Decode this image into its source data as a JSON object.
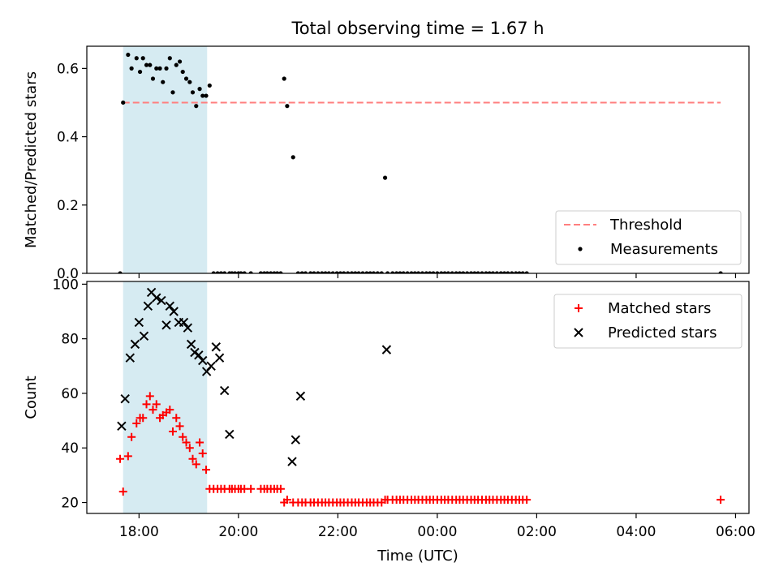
{
  "figure": {
    "title": "Total observing time = 1.67 h",
    "xlabel": "Time (UTC)",
    "xticks": [
      {
        "v": 18,
        "label": "18:00"
      },
      {
        "v": 20,
        "label": "20:00"
      },
      {
        "v": 22,
        "label": "22:00"
      },
      {
        "v": 24,
        "label": "00:00"
      },
      {
        "v": 26,
        "label": "02:00"
      },
      {
        "v": 28,
        "label": "04:00"
      },
      {
        "v": 30,
        "label": "06:00"
      }
    ],
    "xlim": [
      16.95,
      30.27
    ],
    "shaded_interval": [
      17.68,
      19.37
    ],
    "colors": {
      "shade": "#add8e6",
      "threshold": "#ff7f7f",
      "measurements": "#000000",
      "matched": "#ff0000",
      "predicted": "#000000"
    }
  },
  "chart_data": [
    {
      "type": "scatter",
      "ylabel": "Matched/Predicted stars",
      "ylim": [
        0,
        0.665
      ],
      "yticks": [
        {
          "v": 0.0,
          "label": "0.0"
        },
        {
          "v": 0.2,
          "label": "0.2"
        },
        {
          "v": 0.4,
          "label": "0.4"
        },
        {
          "v": 0.6,
          "label": "0.6"
        }
      ],
      "legend_position": "lower-right",
      "legend": [
        {
          "label": "Threshold",
          "marker": "dash"
        },
        {
          "label": "Measurements",
          "marker": "dot"
        }
      ],
      "threshold": {
        "value": 0.5,
        "x_range": [
          17.68,
          29.7
        ]
      },
      "measurements": {
        "x": [
          17.62,
          17.68,
          17.78,
          17.85,
          17.95,
          18.02,
          18.08,
          18.15,
          18.22,
          18.28,
          18.35,
          18.42,
          18.48,
          18.55,
          18.62,
          18.68,
          18.75,
          18.82,
          18.88,
          18.95,
          19.02,
          19.08,
          19.15,
          19.22,
          19.28,
          19.35,
          19.42,
          19.5,
          19.58,
          19.65,
          19.72,
          19.82,
          19.87,
          19.93,
          20.0,
          20.05,
          20.12,
          20.25,
          20.45,
          20.52,
          20.58,
          20.65,
          20.72,
          20.78,
          20.85,
          20.92,
          20.98,
          21.1,
          21.2,
          21.28,
          21.35,
          21.45,
          21.52,
          21.6,
          21.68,
          21.75,
          21.82,
          21.9,
          21.98,
          22.05,
          22.12,
          22.2,
          22.28,
          22.35,
          22.42,
          22.5,
          22.58,
          22.65,
          22.72,
          22.8,
          22.88,
          22.95,
          23.0,
          23.1,
          23.18,
          23.25,
          23.32,
          23.4,
          23.48,
          23.55,
          23.62,
          23.7,
          23.78,
          23.85,
          23.92,
          24.0,
          24.08,
          24.15,
          24.22,
          24.3,
          24.38,
          24.45,
          24.52,
          24.6,
          24.68,
          24.75,
          24.82,
          24.9,
          24.98,
          25.05,
          25.12,
          25.2,
          25.28,
          25.35,
          25.42,
          25.5,
          25.58,
          25.65,
          25.72,
          25.8,
          29.7
        ],
        "y": [
          0.0,
          0.5,
          0.64,
          0.6,
          0.63,
          0.59,
          0.63,
          0.61,
          0.61,
          0.57,
          0.6,
          0.6,
          0.56,
          0.6,
          0.63,
          0.53,
          0.61,
          0.62,
          0.59,
          0.57,
          0.56,
          0.53,
          0.49,
          0.54,
          0.52,
          0.52,
          0.55,
          0,
          0,
          0,
          0,
          0,
          0,
          0,
          0,
          0,
          0,
          0,
          0,
          0,
          0,
          0,
          0,
          0,
          0,
          0.57,
          0.49,
          0.34,
          0,
          0,
          0,
          0,
          0,
          0,
          0,
          0,
          0,
          0,
          0,
          0,
          0,
          0,
          0,
          0,
          0,
          0,
          0,
          0,
          0,
          0,
          0,
          0.28,
          0,
          0,
          0,
          0,
          0,
          0,
          0,
          0,
          0,
          0,
          0,
          0,
          0,
          0,
          0,
          0,
          0,
          0,
          0,
          0,
          0,
          0,
          0,
          0,
          0,
          0,
          0,
          0,
          0,
          0,
          0,
          0,
          0,
          0,
          0,
          0,
          0,
          0,
          0
        ]
      }
    },
    {
      "type": "scatter",
      "ylabel": "Count",
      "ylim": [
        16,
        101
      ],
      "yticks": [
        {
          "v": 20,
          "label": "20"
        },
        {
          "v": 40,
          "label": "40"
        },
        {
          "v": 60,
          "label": "60"
        },
        {
          "v": 80,
          "label": "80"
        },
        {
          "v": 100,
          "label": "100"
        }
      ],
      "legend_position": "upper-right",
      "legend": [
        {
          "label": "Matched stars",
          "marker": "plus"
        },
        {
          "label": "Predicted stars",
          "marker": "x"
        }
      ],
      "series": [
        {
          "name": "Matched stars",
          "x": [
            17.62,
            17.68,
            17.78,
            17.85,
            17.95,
            18.02,
            18.08,
            18.15,
            18.22,
            18.28,
            18.35,
            18.42,
            18.48,
            18.55,
            18.62,
            18.68,
            18.75,
            18.82,
            18.88,
            18.95,
            19.02,
            19.08,
            19.15,
            19.22,
            19.28,
            19.35,
            19.42,
            19.5,
            19.58,
            19.65,
            19.72,
            19.82,
            19.87,
            19.93,
            20.0,
            20.05,
            20.12,
            20.25,
            20.45,
            20.52,
            20.58,
            20.65,
            20.72,
            20.78,
            20.85,
            20.92,
            20.98,
            21.1,
            21.2,
            21.28,
            21.35,
            21.45,
            21.52,
            21.6,
            21.68,
            21.75,
            21.82,
            21.9,
            21.98,
            22.05,
            22.12,
            22.2,
            22.28,
            22.35,
            22.42,
            22.5,
            22.58,
            22.65,
            22.72,
            22.8,
            22.88,
            22.95,
            23.0,
            23.1,
            23.18,
            23.25,
            23.32,
            23.4,
            23.48,
            23.55,
            23.62,
            23.7,
            23.78,
            23.85,
            23.92,
            24.0,
            24.08,
            24.15,
            24.22,
            24.3,
            24.38,
            24.45,
            24.52,
            24.6,
            24.68,
            24.75,
            24.82,
            24.9,
            24.98,
            25.05,
            25.12,
            25.2,
            25.28,
            25.35,
            25.42,
            25.5,
            25.58,
            25.65,
            25.72,
            25.8,
            29.7
          ],
          "y": [
            36,
            24,
            37,
            44,
            49,
            51,
            51,
            56,
            59,
            54,
            56,
            51,
            52,
            53,
            54,
            46,
            51,
            48,
            44,
            42,
            40,
            36,
            34,
            42,
            38,
            32,
            25,
            25,
            25,
            25,
            25,
            25,
            25,
            25,
            25,
            25,
            25,
            25,
            25,
            25,
            25,
            25,
            25,
            25,
            25,
            20,
            21,
            20,
            20,
            20,
            20,
            20,
            20,
            20,
            20,
            20,
            20,
            20,
            20,
            20,
            20,
            20,
            20,
            20,
            20,
            20,
            20,
            20,
            20,
            20,
            20,
            21,
            21,
            21,
            21,
            21,
            21,
            21,
            21,
            21,
            21,
            21,
            21,
            21,
            21,
            21,
            21,
            21,
            21,
            21,
            21,
            21,
            21,
            21,
            21,
            21,
            21,
            21,
            21,
            21,
            21,
            21,
            21,
            21,
            21,
            21,
            21,
            21,
            21,
            21,
            21
          ]
        },
        {
          "name": "Predicted stars",
          "x": [
            17.65,
            17.72,
            17.82,
            17.92,
            18.0,
            18.1,
            18.18,
            18.25,
            18.35,
            18.45,
            18.55,
            18.62,
            18.7,
            18.8,
            18.9,
            18.98,
            19.05,
            19.12,
            19.2,
            19.28,
            19.36,
            19.45,
            19.55,
            19.62,
            19.72,
            19.82,
            21.08,
            21.15,
            21.25,
            22.98
          ],
          "y": [
            48,
            58,
            73,
            78,
            86,
            81,
            92,
            97,
            95,
            94,
            85,
            92,
            90,
            86,
            86,
            84,
            78,
            75,
            74,
            72,
            68,
            70,
            77,
            73,
            61,
            45,
            35,
            43,
            59,
            76
          ]
        }
      ]
    }
  ]
}
